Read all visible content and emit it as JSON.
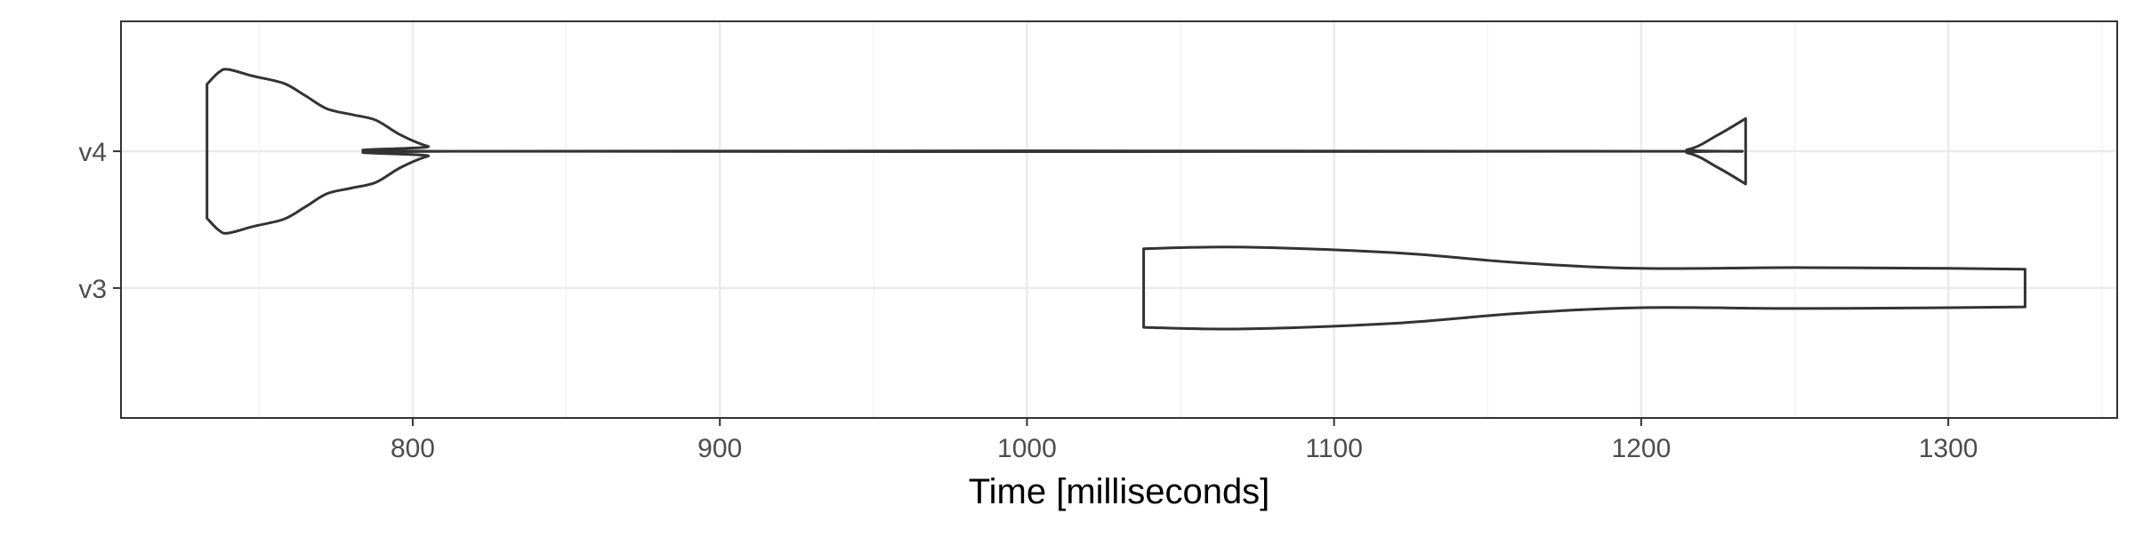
{
  "chart_data": {
    "type": "violin",
    "orientation": "horizontal",
    "xlabel": "Time [milliseconds]",
    "ylabel": "",
    "title": "",
    "xlim": [
      705,
      1355
    ],
    "x_ticks": [
      800,
      900,
      1000,
      1100,
      1200,
      1300
    ],
    "categories": [
      "v3",
      "v4"
    ],
    "grid": true,
    "legend": "none",
    "colors": {
      "outline": "#333333",
      "grid_major": "#ebebeb",
      "grid_minor": "#f3f3f3",
      "panel_border": "#333333",
      "background": "#ffffff"
    },
    "series": [
      {
        "category": "v4",
        "range": [
          733,
          1234
        ],
        "density_profile": [
          [
            733,
            0.82
          ],
          [
            737,
            0.97
          ],
          [
            740,
            1.0
          ],
          [
            748,
            0.92
          ],
          [
            758,
            0.83
          ],
          [
            765,
            0.68
          ],
          [
            772,
            0.52
          ],
          [
            780,
            0.45
          ],
          [
            788,
            0.38
          ],
          [
            796,
            0.2
          ],
          [
            805,
            0.06
          ],
          [
            815,
            0.0
          ],
          [
            1200,
            0.0
          ],
          [
            1215,
            0.02
          ],
          [
            1225,
            0.2
          ],
          [
            1234,
            0.4
          ]
        ]
      },
      {
        "category": "v3",
        "range": [
          1038,
          1325
        ],
        "density_profile": [
          [
            1038,
            0.48
          ],
          [
            1070,
            0.5
          ],
          [
            1120,
            0.43
          ],
          [
            1160,
            0.31
          ],
          [
            1200,
            0.24
          ],
          [
            1250,
            0.25
          ],
          [
            1300,
            0.24
          ],
          [
            1325,
            0.23
          ]
        ]
      }
    ]
  }
}
